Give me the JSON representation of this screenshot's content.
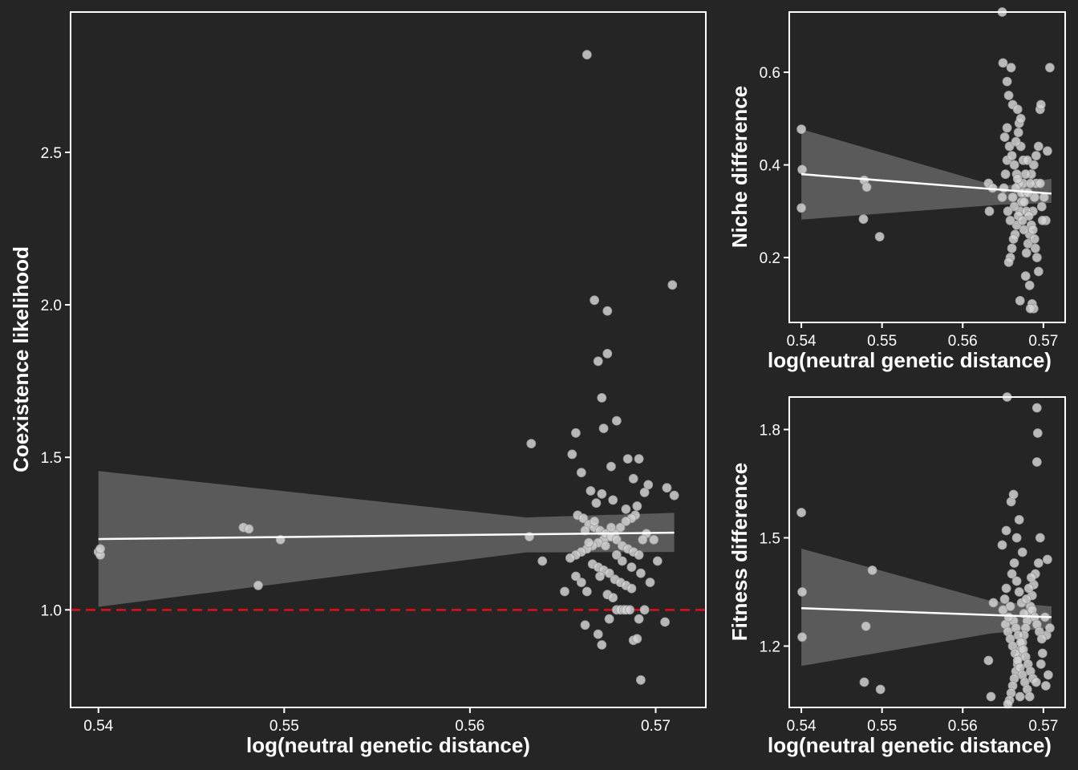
{
  "colors": {
    "background": "#252525",
    "axis": "#ffffff",
    "points": "#d2d2d2",
    "ribbon": "#5a5a5a",
    "fit_line": "#ffffff",
    "reference_line": "#e0101a"
  },
  "chart_data": [
    {
      "type": "scatter",
      "id": "main",
      "title": "",
      "xlabel": "log(neutral genetic distance)",
      "ylabel": "Coexistence likelihood",
      "xlim": [
        0.5385,
        0.5727
      ],
      "ylim": [
        0.68,
        2.96
      ],
      "xticks": [
        0.54,
        0.55,
        0.56,
        0.57
      ],
      "xtick_labels": [
        "0.54",
        "0.55",
        "0.56",
        "0.57"
      ],
      "yticks": [
        1.0,
        1.5,
        2.0,
        2.5
      ],
      "ytick_labels": [
        "1.0",
        "1.5",
        "2.0",
        "2.5"
      ],
      "grid": false,
      "reference_line": {
        "y": 1.0,
        "style": "dashed"
      },
      "fit": {
        "x": [
          0.54,
          0.571
        ],
        "y": [
          1.232,
          1.253
        ],
        "ci_low": [
          1.01,
          1.19
        ],
        "ci_high": [
          1.455,
          1.318
        ],
        "ci_knot": {
          "x": 0.563,
          "low": 1.188,
          "high": 1.303
        }
      },
      "points": [
        [
          0.54,
          1.19
        ],
        [
          0.5401,
          1.18
        ],
        [
          0.5401,
          1.2
        ],
        [
          0.5478,
          1.27
        ],
        [
          0.5481,
          1.265
        ],
        [
          0.5486,
          1.08
        ],
        [
          0.5498,
          1.23
        ],
        [
          0.5633,
          1.545
        ],
        [
          0.5632,
          1.24
        ],
        [
          0.5639,
          1.16
        ],
        [
          0.5651,
          1.06
        ],
        [
          0.5655,
          1.51
        ],
        [
          0.5657,
          1.58
        ],
        [
          0.566,
          1.45
        ],
        [
          0.5663,
          2.82
        ],
        [
          0.5667,
          2.015
        ],
        [
          0.5669,
          1.815
        ],
        [
          0.5671,
          1.695
        ],
        [
          0.5672,
          1.595
        ],
        [
          0.5674,
          1.84
        ],
        [
          0.5674,
          1.98
        ],
        [
          0.5676,
          1.47
        ],
        [
          0.5679,
          1.62
        ],
        [
          0.5685,
          1.495
        ],
        [
          0.569,
          1.34
        ],
        [
          0.5691,
          1.495
        ],
        [
          0.5694,
          1.385
        ],
        [
          0.5696,
          1.41
        ],
        [
          0.5701,
          1.16
        ],
        [
          0.5706,
          1.4
        ],
        [
          0.571,
          1.375
        ],
        [
          0.5709,
          2.065
        ],
        [
          0.5705,
          0.96
        ],
        [
          0.5692,
          0.77
        ],
        [
          0.5688,
          0.9
        ],
        [
          0.569,
          0.905
        ],
        [
          0.5691,
          0.97
        ],
        [
          0.5671,
          0.885
        ],
        [
          0.5669,
          0.92
        ],
        [
          0.5662,
          0.95
        ],
        [
          0.5675,
          0.97
        ],
        [
          0.5679,
          1.0
        ],
        [
          0.5681,
          1.0
        ],
        [
          0.5683,
          1.0
        ],
        [
          0.5684,
          1.0
        ],
        [
          0.5686,
          1.0
        ],
        [
          0.5694,
          1.0
        ],
        [
          0.5689,
          1.31
        ],
        [
          0.5687,
          1.3
        ],
        [
          0.5684,
          1.29
        ],
        [
          0.5681,
          1.27
        ],
        [
          0.5678,
          1.25
        ],
        [
          0.5675,
          1.24
        ],
        [
          0.5672,
          1.23
        ],
        [
          0.5669,
          1.22
        ],
        [
          0.5666,
          1.21
        ],
        [
          0.5663,
          1.2
        ],
        [
          0.566,
          1.19
        ],
        [
          0.5657,
          1.18
        ],
        [
          0.5654,
          1.17
        ],
        [
          0.5658,
          1.31
        ],
        [
          0.5661,
          1.3
        ],
        [
          0.5664,
          1.28
        ],
        [
          0.5667,
          1.27
        ],
        [
          0.567,
          1.26
        ],
        [
          0.5673,
          1.25
        ],
        [
          0.5676,
          1.24
        ],
        [
          0.5679,
          1.23
        ],
        [
          0.5682,
          1.21
        ],
        [
          0.5685,
          1.2
        ],
        [
          0.5688,
          1.19
        ],
        [
          0.5691,
          1.18
        ],
        [
          0.5666,
          1.15
        ],
        [
          0.5669,
          1.14
        ],
        [
          0.5672,
          1.13
        ],
        [
          0.5675,
          1.12
        ],
        [
          0.5678,
          1.1
        ],
        [
          0.5681,
          1.09
        ],
        [
          0.5684,
          1.08
        ],
        [
          0.5687,
          1.07
        ],
        [
          0.5663,
          1.06
        ],
        [
          0.566,
          1.09
        ],
        [
          0.5657,
          1.11
        ],
        [
          0.5674,
          1.05
        ],
        [
          0.5677,
          1.04
        ],
        [
          0.5697,
          1.09
        ],
        [
          0.5692,
          1.12
        ],
        [
          0.5695,
          1.25
        ],
        [
          0.5693,
          1.23
        ],
        [
          0.5668,
          1.35
        ],
        [
          0.5671,
          1.38
        ],
        [
          0.5665,
          1.39
        ],
        [
          0.5677,
          1.36
        ],
        [
          0.5684,
          1.33
        ],
        [
          0.5688,
          1.43
        ],
        [
          0.5662,
          1.26
        ],
        [
          0.5664,
          1.22
        ],
        [
          0.567,
          1.11
        ],
        [
          0.5673,
          1.21
        ],
        [
          0.5676,
          1.27
        ],
        [
          0.5682,
          1.16
        ],
        [
          0.5687,
          1.14
        ],
        [
          0.5699,
          1.23
        ],
        [
          0.5679,
          1.18
        ],
        [
          0.5667,
          1.29
        ]
      ]
    },
    {
      "type": "scatter",
      "id": "niche",
      "title": "",
      "xlabel": "log(neutral genetic distance)",
      "ylabel": "Niche difference",
      "xlim": [
        0.5385,
        0.5727
      ],
      "ylim": [
        0.06,
        0.73
      ],
      "xticks": [
        0.54,
        0.55,
        0.56,
        0.57
      ],
      "xtick_labels": [
        "0.54",
        "0.55",
        "0.56",
        "0.57"
      ],
      "yticks": [
        0.2,
        0.4,
        0.6
      ],
      "ytick_labels": [
        "0.2",
        "0.4",
        "0.6"
      ],
      "grid": false,
      "fit": {
        "x": [
          0.54,
          0.571
        ],
        "y": [
          0.38,
          0.338
        ],
        "ci_low": [
          0.282,
          0.318
        ],
        "ci_high": [
          0.477,
          0.37
        ],
        "ci_knot": {
          "x": 0.5645,
          "low": 0.314,
          "high": 0.353
        }
      },
      "points": [
        [
          0.54,
          0.477
        ],
        [
          0.5401,
          0.39
        ],
        [
          0.54,
          0.307
        ],
        [
          0.5478,
          0.367
        ],
        [
          0.5481,
          0.352
        ],
        [
          0.5477,
          0.283
        ],
        [
          0.5497,
          0.245
        ],
        [
          0.5633,
          0.3
        ],
        [
          0.5632,
          0.36
        ],
        [
          0.5637,
          0.35
        ],
        [
          0.5649,
          0.73
        ],
        [
          0.565,
          0.62
        ],
        [
          0.5655,
          0.58
        ],
        [
          0.566,
          0.61
        ],
        [
          0.5657,
          0.55
        ],
        [
          0.5662,
          0.53
        ],
        [
          0.5668,
          0.52
        ],
        [
          0.567,
          0.49
        ],
        [
          0.5672,
          0.44
        ],
        [
          0.5675,
          0.41
        ],
        [
          0.5671,
          0.107
        ],
        [
          0.5678,
          0.16
        ],
        [
          0.5683,
          0.14
        ],
        [
          0.5686,
          0.1
        ],
        [
          0.5688,
          0.09
        ],
        [
          0.5684,
          0.09
        ],
        [
          0.569,
          0.22
        ],
        [
          0.5692,
          0.2
        ],
        [
          0.5694,
          0.17
        ],
        [
          0.5708,
          0.61
        ],
        [
          0.5705,
          0.43
        ],
        [
          0.5703,
          0.28
        ],
        [
          0.5696,
          0.52
        ],
        [
          0.5697,
          0.53
        ],
        [
          0.5691,
          0.36
        ],
        [
          0.5689,
          0.33
        ],
        [
          0.5687,
          0.3
        ],
        [
          0.5685,
          0.27
        ],
        [
          0.5683,
          0.25
        ],
        [
          0.5681,
          0.23
        ],
        [
          0.5679,
          0.21
        ],
        [
          0.5677,
          0.34
        ],
        [
          0.5675,
          0.36
        ],
        [
          0.5673,
          0.32
        ],
        [
          0.5671,
          0.3
        ],
        [
          0.5669,
          0.29
        ],
        [
          0.5667,
          0.27
        ],
        [
          0.5665,
          0.25
        ],
        [
          0.5663,
          0.24
        ],
        [
          0.5661,
          0.22
        ],
        [
          0.5659,
          0.2
        ],
        [
          0.5657,
          0.19
        ],
        [
          0.5655,
          0.41
        ],
        [
          0.5653,
          0.38
        ],
        [
          0.5651,
          0.35
        ],
        [
          0.5649,
          0.33
        ],
        [
          0.5652,
          0.46
        ],
        [
          0.5655,
          0.48
        ],
        [
          0.5658,
          0.44
        ],
        [
          0.5661,
          0.42
        ],
        [
          0.5664,
          0.4
        ],
        [
          0.5667,
          0.38
        ],
        [
          0.567,
          0.36
        ],
        [
          0.5673,
          0.34
        ],
        [
          0.5676,
          0.32
        ],
        [
          0.5679,
          0.3
        ],
        [
          0.5682,
          0.29
        ],
        [
          0.5685,
          0.38
        ],
        [
          0.5688,
          0.4
        ],
        [
          0.5691,
          0.42
        ],
        [
          0.5694,
          0.44
        ],
        [
          0.5696,
          0.36
        ],
        [
          0.5698,
          0.31
        ],
        [
          0.5666,
          0.45
        ],
        [
          0.5669,
          0.47
        ],
        [
          0.5672,
          0.5
        ],
        [
          0.5674,
          0.28
        ],
        [
          0.5676,
          0.26
        ],
        [
          0.5678,
          0.38
        ],
        [
          0.568,
          0.41
        ],
        [
          0.5662,
          0.33
        ],
        [
          0.5664,
          0.31
        ],
        [
          0.5666,
          0.35
        ],
        [
          0.5668,
          0.37
        ],
        [
          0.5656,
          0.3
        ],
        [
          0.5659,
          0.28
        ],
        [
          0.5681,
          0.34
        ],
        [
          0.5684,
          0.36
        ],
        [
          0.5687,
          0.26
        ],
        [
          0.5689,
          0.24
        ],
        [
          0.5699,
          0.28
        ],
        [
          0.5701,
          0.33
        ]
      ]
    },
    {
      "type": "scatter",
      "id": "fitness",
      "title": "",
      "xlabel": "log(neutral genetic distance)",
      "ylabel": "Fitness difference",
      "xlim": [
        0.5385,
        0.5727
      ],
      "ylim": [
        1.03,
        1.89
      ],
      "xticks": [
        0.54,
        0.55,
        0.56,
        0.57
      ],
      "xtick_labels": [
        "0.54",
        "0.55",
        "0.56",
        "0.57"
      ],
      "yticks": [
        1.2,
        1.5,
        1.8
      ],
      "ytick_labels": [
        "1.2",
        "1.5",
        "1.8"
      ],
      "grid": false,
      "fit": {
        "x": [
          0.54,
          0.571
        ],
        "y": [
          1.305,
          1.28
        ],
        "ci_low": [
          1.145,
          1.25
        ],
        "ci_high": [
          1.47,
          1.31
        ],
        "ci_knot": {
          "x": 0.5635,
          "low": 1.235,
          "high": 1.325
        }
      },
      "points": [
        [
          0.54,
          1.57
        ],
        [
          0.5401,
          1.35
        ],
        [
          0.5401,
          1.225
        ],
        [
          0.5478,
          1.1
        ],
        [
          0.548,
          1.255
        ],
        [
          0.5488,
          1.41
        ],
        [
          0.5498,
          1.08
        ],
        [
          0.5632,
          1.16
        ],
        [
          0.5635,
          1.06
        ],
        [
          0.5638,
          1.32
        ],
        [
          0.5649,
          1.48
        ],
        [
          0.5654,
          1.52
        ],
        [
          0.5655,
          1.89
        ],
        [
          0.566,
          1.6
        ],
        [
          0.5663,
          1.62
        ],
        [
          0.5667,
          1.5
        ],
        [
          0.567,
          1.55
        ],
        [
          0.5674,
          1.46
        ],
        [
          0.5692,
          1.86
        ],
        [
          0.5693,
          1.79
        ],
        [
          0.5692,
          1.71
        ],
        [
          0.5705,
          1.44
        ],
        [
          0.5702,
          1.28
        ],
        [
          0.5704,
          1.23
        ],
        [
          0.5706,
          1.12
        ],
        [
          0.5703,
          1.09
        ],
        [
          0.5708,
          1.25
        ],
        [
          0.5696,
          1.5
        ],
        [
          0.5694,
          1.43
        ],
        [
          0.569,
          1.4
        ],
        [
          0.5688,
          1.37
        ],
        [
          0.5686,
          1.34
        ],
        [
          0.5684,
          1.31
        ],
        [
          0.5682,
          1.29
        ],
        [
          0.568,
          1.27
        ],
        [
          0.5678,
          1.25
        ],
        [
          0.5676,
          1.23
        ],
        [
          0.5674,
          1.21
        ],
        [
          0.5672,
          1.19
        ],
        [
          0.567,
          1.17
        ],
        [
          0.5668,
          1.15
        ],
        [
          0.5666,
          1.13
        ],
        [
          0.5664,
          1.11
        ],
        [
          0.5662,
          1.09
        ],
        [
          0.566,
          1.07
        ],
        [
          0.5658,
          1.05
        ],
        [
          0.5656,
          1.04
        ],
        [
          0.5654,
          1.36
        ],
        [
          0.5652,
          1.33
        ],
        [
          0.565,
          1.3
        ],
        [
          0.5653,
          1.26
        ],
        [
          0.5656,
          1.24
        ],
        [
          0.5659,
          1.22
        ],
        [
          0.5662,
          1.2
        ],
        [
          0.5665,
          1.18
        ],
        [
          0.5668,
          1.16
        ],
        [
          0.5671,
          1.14
        ],
        [
          0.5674,
          1.12
        ],
        [
          0.5677,
          1.1
        ],
        [
          0.568,
          1.08
        ],
        [
          0.5683,
          1.06
        ],
        [
          0.5686,
          1.3
        ],
        [
          0.5689,
          1.28
        ],
        [
          0.5692,
          1.26
        ],
        [
          0.5695,
          1.24
        ],
        [
          0.5698,
          1.22
        ],
        [
          0.5661,
          1.4
        ],
        [
          0.5664,
          1.43
        ],
        [
          0.5667,
          1.38
        ],
        [
          0.567,
          1.35
        ],
        [
          0.5673,
          1.32
        ],
        [
          0.5676,
          1.29
        ],
        [
          0.5679,
          1.33
        ],
        [
          0.5682,
          1.36
        ],
        [
          0.5685,
          1.39
        ],
        [
          0.5663,
          1.27
        ],
        [
          0.5666,
          1.25
        ],
        [
          0.5669,
          1.23
        ],
        [
          0.5672,
          1.21
        ],
        [
          0.5675,
          1.19
        ],
        [
          0.5678,
          1.17
        ],
        [
          0.5681,
          1.15
        ],
        [
          0.5684,
          1.13
        ],
        [
          0.5687,
          1.11
        ],
        [
          0.5657,
          1.28
        ],
        [
          0.5659,
          1.31
        ],
        [
          0.5697,
          1.15
        ],
        [
          0.5699,
          1.18
        ],
        [
          0.5691,
          1.1
        ],
        [
          0.5671,
          1.06
        ]
      ]
    }
  ]
}
